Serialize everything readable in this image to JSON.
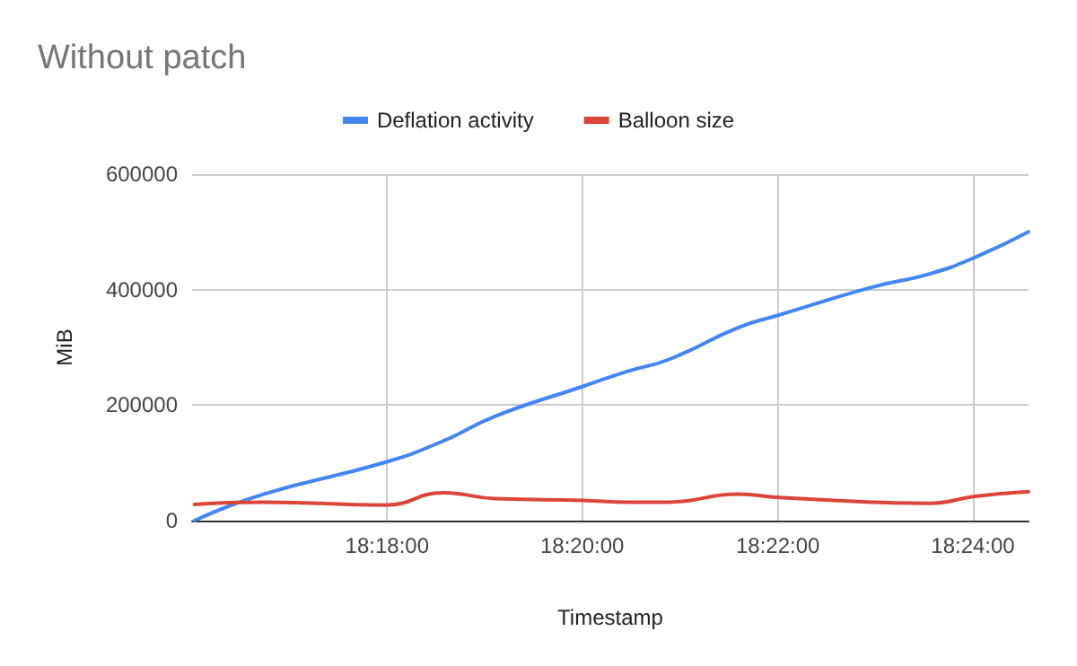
{
  "chart_data": {
    "type": "line",
    "title": "Without patch",
    "xlabel": "Timestamp",
    "ylabel": "MiB",
    "x": [
      18.2671,
      18.279,
      18.2997,
      18.3096,
      18.3185,
      18.3333,
      18.3412,
      18.3481,
      18.3599,
      18.3669,
      18.3827,
      18.3925,
      18.4004,
      18.4095
    ],
    "series": [
      {
        "name": "Deflation activity",
        "color": "#4285f4",
        "values": [
          0,
          46000,
          101000,
          138000,
          181000,
          232000,
          259000,
          279000,
          334000,
          356000,
          404000,
          427000,
          456000,
          500000
        ]
      },
      {
        "name": "Balloon size",
        "color": "#db4437",
        "values": [
          28000,
          32000,
          27000,
          48000,
          38000,
          35000,
          32000,
          32000,
          46000,
          40000,
          32000,
          30000,
          42000,
          50000
        ]
      }
    ],
    "xlim": [
      18.2667,
      18.4095
    ],
    "xticks": [
      {
        "value": 18.3,
        "label": "18:18:00"
      },
      {
        "value": 18.3333,
        "label": "18:20:00"
      },
      {
        "value": 18.3667,
        "label": "18:22:00"
      },
      {
        "value": 18.4,
        "label": "18:24:00"
      }
    ],
    "ylim": [
      0,
      600000
    ],
    "yticks": [
      0,
      200000,
      400000,
      600000
    ],
    "grid": true,
    "legend": "top",
    "marker": "none",
    "line_style": "solid"
  }
}
